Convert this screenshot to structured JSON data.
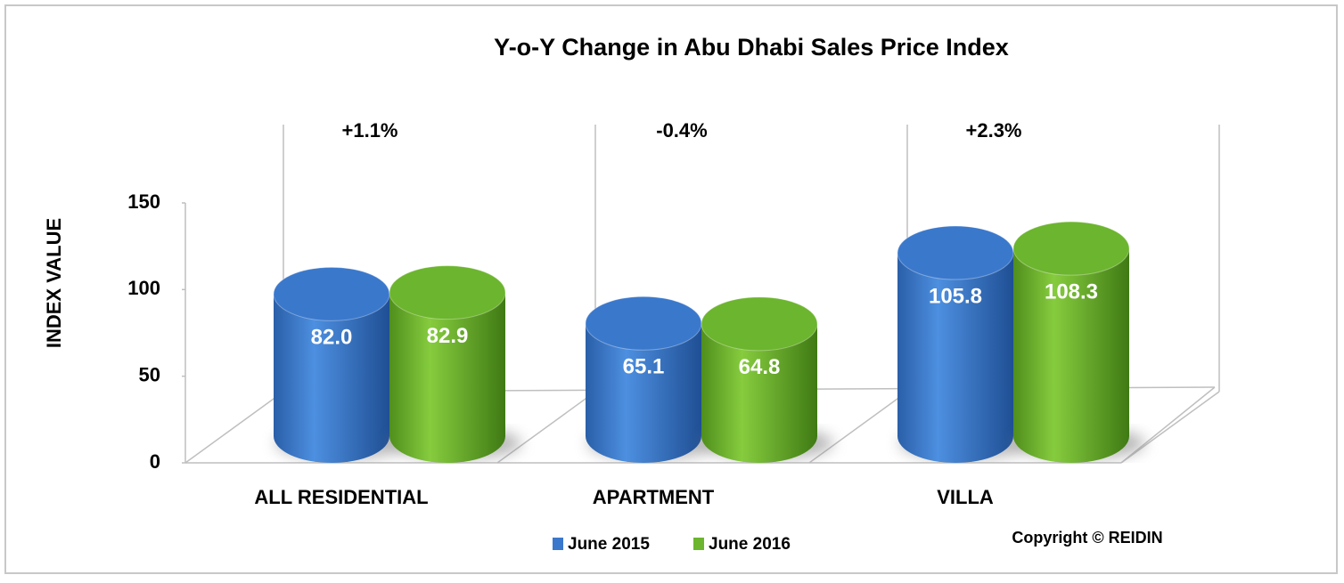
{
  "chart_data": {
    "type": "bar3d",
    "title": "Y-o-Y Change in Abu Dhabi Sales Price Index",
    "y_label": "INDEX VALUE",
    "categories": [
      "ALL RESIDENTIAL",
      "APARTMENT",
      "VILLA"
    ],
    "series": [
      {
        "name": "June 2015",
        "color": "#3a78cc",
        "values": [
          82.0,
          65.1,
          105.8
        ],
        "value_labels": [
          "82.0",
          "65.1",
          "105.8"
        ]
      },
      {
        "name": "June 2016",
        "color": "#6cb52e",
        "values": [
          82.9,
          64.8,
          108.3
        ],
        "value_labels": [
          "82.9",
          "64.8",
          "108.3"
        ]
      }
    ],
    "annotations": [
      "+1.1%",
      "-0.4%",
      "+2.3%"
    ],
    "ylim": [
      0,
      150
    ],
    "yticks": [
      0,
      50,
      100,
      150
    ],
    "copyright": "Copyright © REIDIN"
  }
}
